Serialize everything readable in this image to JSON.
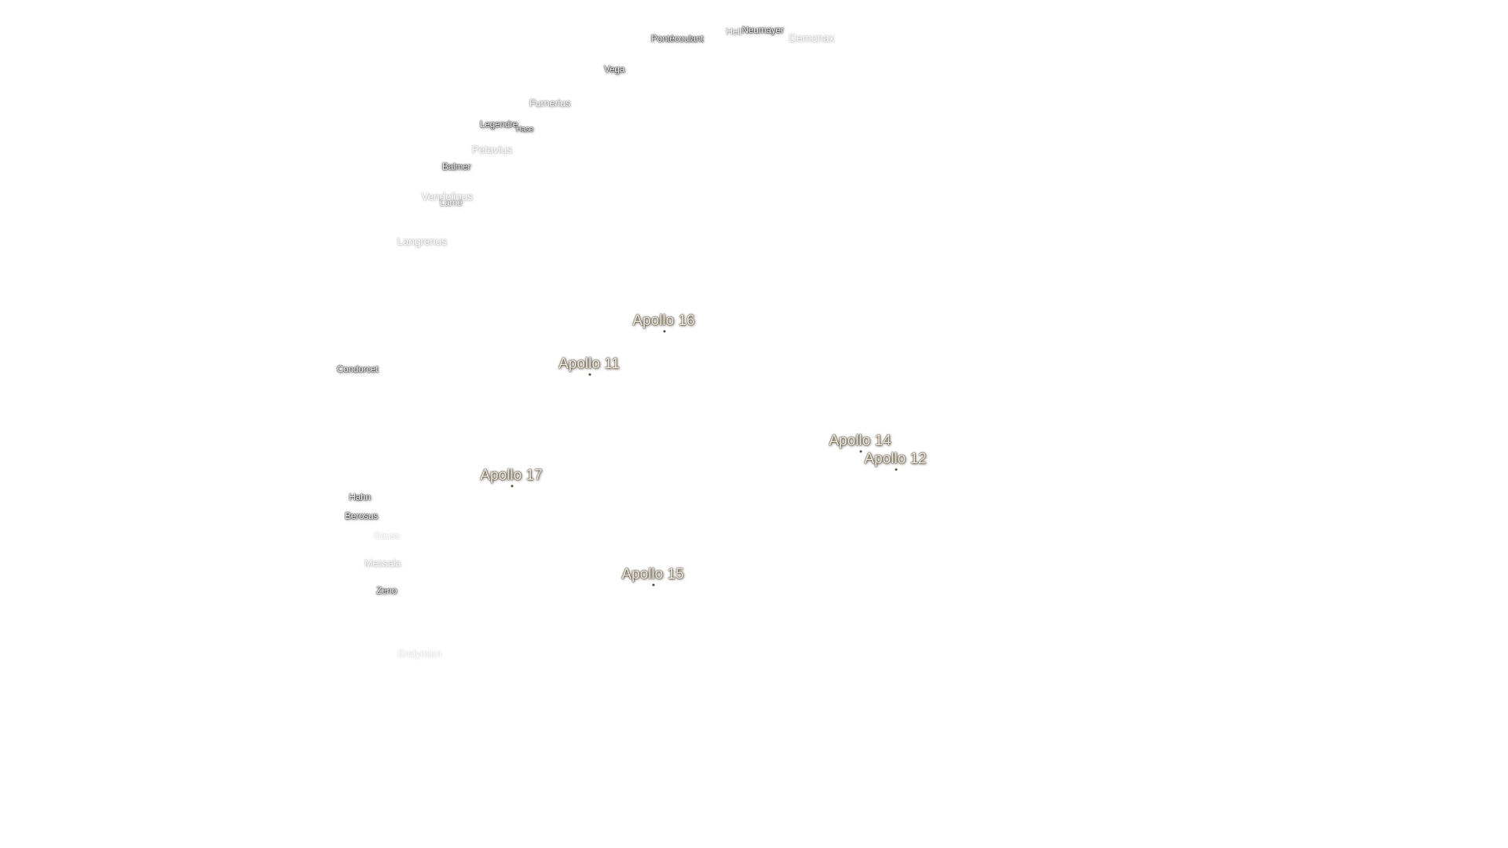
{
  "craters": [
    "Pontécoulant",
    "Hell",
    "Neumayer",
    "Demonax",
    "Vega",
    "Furnerius",
    "Legendre",
    "Hase",
    "Petavius",
    "Balmer",
    "Vendelinus",
    "Lamé",
    "Langrenus",
    "Condorcet",
    "Hahn",
    "Berosus",
    "Gauss",
    "Messala",
    "Zeno",
    "Endymion"
  ],
  "landing_sites": [
    "Apollo 16",
    "Apollo 11",
    "Apollo 14",
    "Apollo 12",
    "Apollo 17",
    "Apollo 15"
  ]
}
